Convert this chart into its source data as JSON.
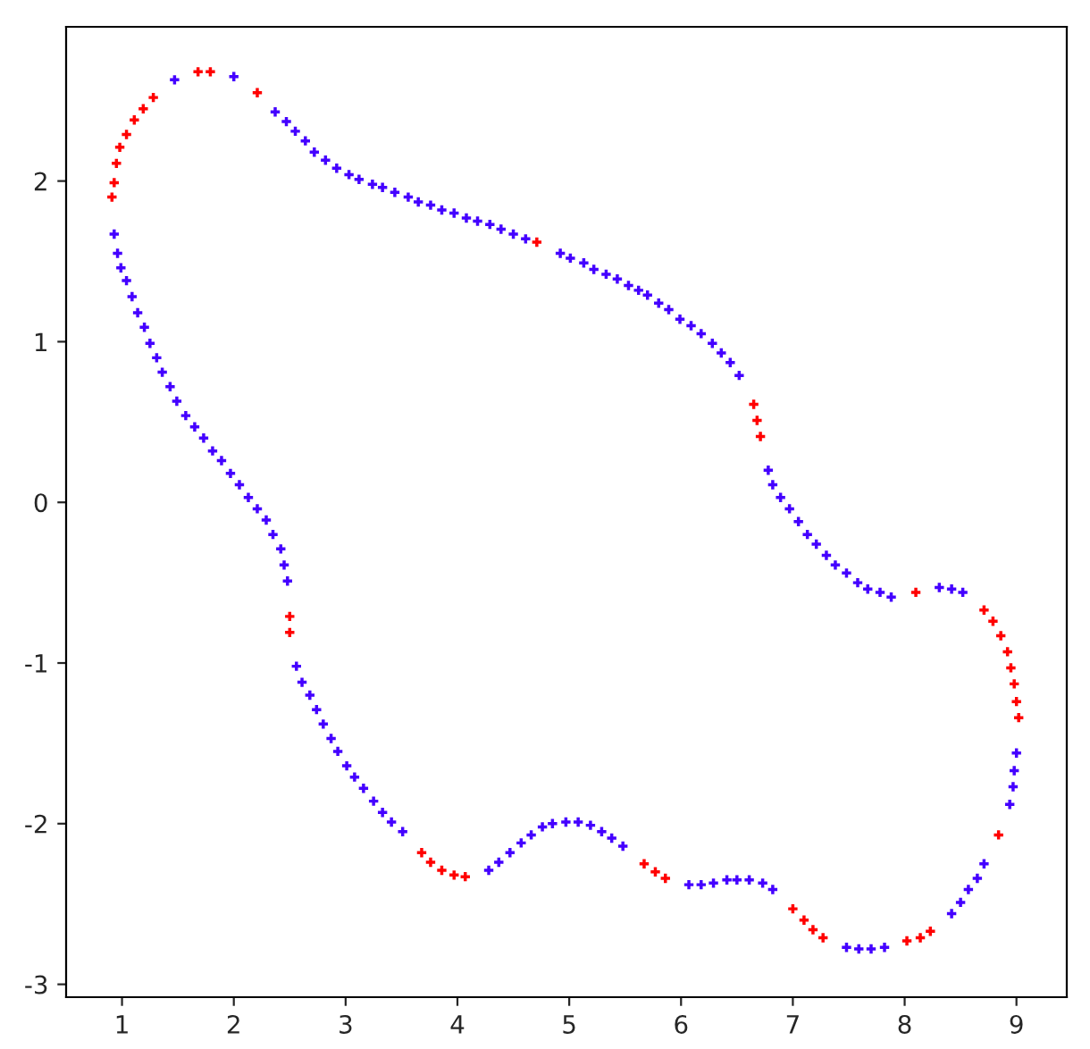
{
  "chart_data": {
    "type": "scatter",
    "xlim": [
      0.5,
      9.45
    ],
    "ylim": [
      -3.08,
      2.96
    ],
    "xticks": [
      1,
      2,
      3,
      4,
      5,
      6,
      7,
      8,
      9
    ],
    "yticks": [
      -3,
      -2,
      -1,
      0,
      1,
      2
    ],
    "marker": "cross",
    "series": [
      {
        "color": "#4400ff",
        "x": [
          1.47,
          2.0,
          2.37,
          2.47,
          2.55,
          2.64,
          2.72,
          2.82,
          2.92,
          3.03,
          3.12,
          3.24,
          3.33,
          3.44,
          3.56,
          3.65,
          3.76,
          3.86,
          3.97,
          4.08,
          4.18,
          4.29,
          4.39,
          4.5,
          4.61,
          4.92,
          0.93,
          0.96,
          0.99,
          1.04,
          1.09,
          1.14,
          1.2,
          1.25,
          1.31,
          1.36,
          1.43,
          1.49,
          1.57,
          1.65,
          1.73,
          1.81,
          1.89,
          1.97,
          2.05,
          2.13,
          2.21,
          2.29,
          2.35,
          2.42,
          2.45,
          2.48,
          2.56,
          2.61,
          2.68,
          2.74,
          2.8,
          2.87,
          2.93,
          3.01,
          3.08,
          3.16,
          3.25,
          3.33,
          3.41,
          3.51,
          4.28,
          4.37,
          4.47,
          4.57,
          4.66,
          4.76,
          4.85,
          4.97,
          5.08,
          5.19,
          5.29,
          5.38,
          5.48,
          6.07,
          6.18,
          6.29,
          6.41,
          6.5,
          6.61,
          6.73,
          6.82,
          7.48,
          7.59,
          7.7,
          7.82,
          8.42,
          8.5,
          8.57,
          8.65,
          8.71,
          8.94,
          8.97,
          8.98,
          9.0,
          8.52,
          8.42,
          8.31,
          7.88,
          7.78,
          7.67,
          7.58,
          7.48,
          5.01,
          5.13,
          5.22,
          5.33,
          5.43,
          5.53,
          5.62,
          5.7,
          5.8,
          5.89,
          5.99,
          6.09,
          6.18,
          6.28,
          6.36,
          6.44,
          6.52,
          6.78,
          6.82,
          6.89,
          6.97,
          7.05,
          7.13,
          7.21,
          7.3,
          7.38
        ],
        "values": [
          2.63,
          2.65,
          2.43,
          2.37,
          2.31,
          2.25,
          2.18,
          2.13,
          2.08,
          2.04,
          2.01,
          1.98,
          1.96,
          1.93,
          1.9,
          1.87,
          1.85,
          1.82,
          1.8,
          1.77,
          1.75,
          1.73,
          1.7,
          1.67,
          1.64,
          1.55,
          1.67,
          1.55,
          1.46,
          1.38,
          1.28,
          1.18,
          1.09,
          0.99,
          0.9,
          0.81,
          0.72,
          0.63,
          0.54,
          0.47,
          0.4,
          0.32,
          0.26,
          0.18,
          0.11,
          0.03,
          -0.04,
          -0.11,
          -0.2,
          -0.29,
          -0.39,
          -0.49,
          -1.02,
          -1.12,
          -1.2,
          -1.29,
          -1.38,
          -1.47,
          -1.55,
          -1.64,
          -1.71,
          -1.78,
          -1.86,
          -1.93,
          -1.99,
          -2.05,
          -2.29,
          -2.24,
          -2.18,
          -2.12,
          -2.07,
          -2.02,
          -2.0,
          -1.99,
          -1.99,
          -2.01,
          -2.05,
          -2.09,
          -2.14,
          -2.38,
          -2.38,
          -2.37,
          -2.35,
          -2.35,
          -2.35,
          -2.37,
          -2.41,
          -2.77,
          -2.78,
          -2.78,
          -2.77,
          -2.56,
          -2.49,
          -2.41,
          -2.34,
          -2.25,
          -1.88,
          -1.77,
          -1.67,
          -1.56,
          -0.56,
          -0.54,
          -0.53,
          -0.59,
          -0.56,
          -0.54,
          -0.5,
          -0.44,
          1.52,
          1.49,
          1.45,
          1.42,
          1.39,
          1.35,
          1.32,
          1.29,
          1.24,
          1.2,
          1.14,
          1.1,
          1.05,
          0.99,
          0.93,
          0.87,
          0.79,
          0.2,
          0.11,
          0.03,
          -0.04,
          -0.12,
          -0.2,
          -0.26,
          -0.33,
          -0.39
        ]
      },
      {
        "color": "#ff0000",
        "x": [
          0.91,
          0.93,
          0.95,
          0.98,
          1.04,
          1.11,
          1.19,
          1.28,
          1.68,
          1.79,
          2.21,
          4.71,
          2.5,
          2.5,
          3.68,
          3.76,
          3.86,
          3.97,
          4.07,
          5.67,
          5.77,
          5.86,
          7.0,
          7.1,
          7.18,
          7.27,
          8.02,
          8.14,
          8.23,
          8.84,
          9.02,
          9.0,
          8.98,
          8.95,
          8.92,
          8.86,
          8.79,
          8.71,
          8.1,
          6.65,
          6.68,
          6.71
        ],
        "values": [
          1.9,
          1.99,
          2.11,
          2.21,
          2.29,
          2.38,
          2.45,
          2.52,
          2.68,
          2.68,
          2.55,
          1.62,
          -0.71,
          -0.81,
          -2.18,
          -2.24,
          -2.29,
          -2.32,
          -2.33,
          -2.25,
          -2.3,
          -2.34,
          -2.53,
          -2.6,
          -2.66,
          -2.71,
          -2.73,
          -2.71,
          -2.67,
          -2.07,
          -1.34,
          -1.24,
          -1.13,
          -1.03,
          -0.93,
          -0.83,
          -0.74,
          -0.67,
          -0.56,
          0.61,
          0.51,
          0.41
        ]
      }
    ]
  }
}
